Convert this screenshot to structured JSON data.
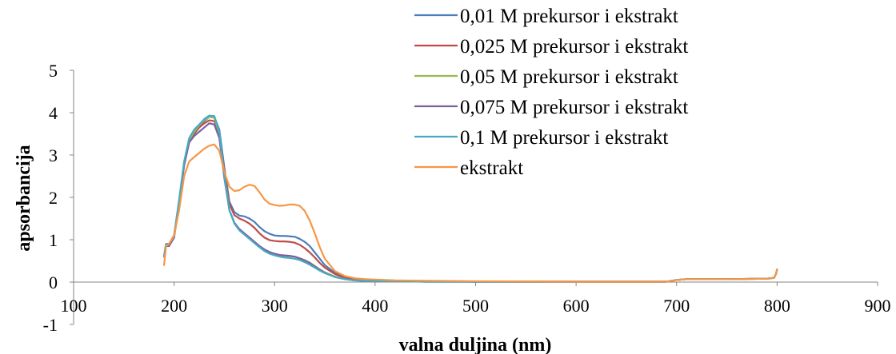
{
  "chart_data": {
    "type": "line",
    "title": "",
    "xlabel": "valna duljina (nm)",
    "ylabel": "apsorbancija",
    "xlim": [
      100,
      900
    ],
    "ylim": [
      -1,
      5
    ],
    "xticks": [
      100,
      200,
      300,
      400,
      500,
      600,
      700,
      800,
      900
    ],
    "yticks": [
      -1,
      0,
      1,
      2,
      3,
      4,
      5
    ],
    "x_tick_labels": [
      "100",
      "200",
      "300",
      "400",
      "500",
      "600",
      "700",
      "800",
      "900"
    ],
    "y_tick_labels": [
      "-1",
      "0",
      "1",
      "2",
      "3",
      "4",
      "5"
    ],
    "grid": false,
    "legend_position": "top-right",
    "series": [
      {
        "name": "0,01 M prekursor i ekstrakt",
        "color": "#4A7EBB",
        "x": [
          190,
          192,
          195,
          200,
          205,
          210,
          215,
          220,
          225,
          230,
          235,
          240,
          245,
          250,
          255,
          260,
          265,
          270,
          275,
          280,
          285,
          290,
          295,
          300,
          305,
          310,
          315,
          320,
          325,
          330,
          335,
          340,
          345,
          350,
          360,
          370,
          380,
          390,
          400,
          420,
          450,
          500,
          600,
          690,
          700,
          710,
          720,
          750,
          790,
          797,
          799,
          800
        ],
        "y": [
          0.6,
          0.9,
          0.9,
          1.1,
          1.9,
          2.8,
          3.3,
          3.6,
          3.7,
          3.8,
          3.9,
          3.9,
          3.6,
          2.7,
          1.9,
          1.65,
          1.57,
          1.55,
          1.5,
          1.42,
          1.3,
          1.2,
          1.14,
          1.1,
          1.09,
          1.09,
          1.08,
          1.07,
          1.02,
          0.95,
          0.85,
          0.7,
          0.55,
          0.4,
          0.22,
          0.12,
          0.07,
          0.05,
          0.04,
          0.03,
          0.02,
          0.01,
          0.01,
          0.01,
          0.05,
          0.07,
          0.07,
          0.07,
          0.08,
          0.1,
          0.2,
          0.3
        ]
      },
      {
        "name": "0,025 M prekursor i ekstrakt",
        "color": "#BE4B48",
        "x": [
          190,
          192,
          195,
          200,
          205,
          210,
          215,
          220,
          225,
          230,
          235,
          240,
          245,
          250,
          255,
          260,
          265,
          270,
          275,
          280,
          285,
          290,
          295,
          300,
          305,
          310,
          315,
          320,
          325,
          330,
          335,
          340,
          345,
          350,
          360,
          370,
          380,
          390,
          400,
          420,
          450,
          500,
          600,
          690,
          700,
          710,
          720,
          750,
          790,
          797,
          799,
          800
        ],
        "y": [
          0.6,
          0.9,
          0.9,
          1.1,
          1.9,
          2.8,
          3.3,
          3.5,
          3.65,
          3.75,
          3.82,
          3.8,
          3.5,
          2.6,
          1.85,
          1.58,
          1.5,
          1.45,
          1.38,
          1.28,
          1.15,
          1.05,
          0.99,
          0.97,
          0.96,
          0.96,
          0.95,
          0.93,
          0.88,
          0.8,
          0.7,
          0.58,
          0.45,
          0.34,
          0.19,
          0.1,
          0.06,
          0.04,
          0.03,
          0.02,
          0.02,
          0.01,
          0.01,
          0.01,
          0.05,
          0.07,
          0.07,
          0.07,
          0.08,
          0.1,
          0.2,
          0.3
        ]
      },
      {
        "name": "0,05 M prekursor i ekstrakt",
        "color": "#98B954",
        "x": [
          190,
          192,
          195,
          200,
          205,
          210,
          215,
          220,
          225,
          230,
          235,
          240,
          245,
          250,
          255,
          260,
          265,
          270,
          275,
          280,
          285,
          290,
          295,
          300,
          305,
          310,
          315,
          320,
          325,
          330,
          335,
          340,
          345,
          350,
          360,
          370,
          380,
          390,
          400,
          420,
          450,
          500,
          600,
          690,
          700,
          710,
          720,
          750,
          790,
          797,
          799,
          800
        ],
        "y": [
          0.6,
          0.9,
          0.9,
          1.1,
          1.9,
          2.8,
          3.35,
          3.55,
          3.7,
          3.82,
          3.9,
          3.88,
          3.5,
          2.5,
          1.7,
          1.4,
          1.25,
          1.15,
          1.05,
          0.95,
          0.85,
          0.76,
          0.7,
          0.66,
          0.63,
          0.62,
          0.61,
          0.6,
          0.56,
          0.52,
          0.46,
          0.38,
          0.3,
          0.23,
          0.13,
          0.07,
          0.04,
          0.03,
          0.02,
          0.02,
          0.01,
          0.01,
          0.01,
          0.01,
          0.05,
          0.07,
          0.07,
          0.07,
          0.08,
          0.1,
          0.2,
          0.3
        ]
      },
      {
        "name": "0,075 M prekursor i ekstrakt",
        "color": "#7D60A0",
        "x": [
          190,
          192,
          195,
          200,
          205,
          210,
          215,
          220,
          225,
          230,
          235,
          240,
          245,
          250,
          255,
          260,
          265,
          270,
          275,
          280,
          285,
          290,
          295,
          300,
          305,
          310,
          315,
          320,
          325,
          330,
          335,
          340,
          345,
          350,
          360,
          370,
          380,
          390,
          400,
          420,
          450,
          500,
          600,
          690,
          700,
          710,
          720,
          750,
          790,
          797,
          799,
          800
        ],
        "y": [
          0.6,
          0.85,
          0.85,
          1.05,
          1.85,
          2.75,
          3.3,
          3.45,
          3.55,
          3.65,
          3.75,
          3.72,
          3.4,
          2.45,
          1.7,
          1.4,
          1.25,
          1.15,
          1.05,
          0.95,
          0.85,
          0.77,
          0.71,
          0.67,
          0.64,
          0.63,
          0.62,
          0.6,
          0.56,
          0.51,
          0.45,
          0.37,
          0.29,
          0.22,
          0.12,
          0.07,
          0.04,
          0.03,
          0.02,
          0.02,
          0.01,
          0.01,
          0.01,
          0.01,
          0.05,
          0.07,
          0.07,
          0.07,
          0.08,
          0.1,
          0.2,
          0.3
        ]
      },
      {
        "name": "0,1 M prekursor i ekstrakt",
        "color": "#46AAC5",
        "x": [
          190,
          192,
          195,
          200,
          205,
          210,
          215,
          220,
          225,
          230,
          235,
          240,
          245,
          250,
          255,
          260,
          265,
          270,
          275,
          280,
          285,
          290,
          295,
          300,
          305,
          310,
          315,
          320,
          325,
          330,
          335,
          340,
          345,
          350,
          360,
          370,
          380,
          390,
          400,
          420,
          450,
          500,
          600,
          690,
          700,
          710,
          720,
          750,
          790,
          797,
          799,
          800
        ],
        "y": [
          0.6,
          0.9,
          0.9,
          1.1,
          1.95,
          2.85,
          3.4,
          3.6,
          3.72,
          3.85,
          3.93,
          3.92,
          3.55,
          2.5,
          1.7,
          1.38,
          1.22,
          1.12,
          1.02,
          0.92,
          0.82,
          0.73,
          0.67,
          0.63,
          0.6,
          0.58,
          0.57,
          0.55,
          0.52,
          0.47,
          0.41,
          0.34,
          0.27,
          0.21,
          0.12,
          0.07,
          0.04,
          0.03,
          0.02,
          0.02,
          0.01,
          0.01,
          0.01,
          0.01,
          0.05,
          0.07,
          0.07,
          0.07,
          0.08,
          0.1,
          0.2,
          0.3
        ]
      },
      {
        "name": "ekstrakt",
        "color": "#F79646",
        "x": [
          190,
          192,
          195,
          200,
          205,
          210,
          215,
          220,
          225,
          230,
          235,
          240,
          245,
          250,
          255,
          260,
          265,
          270,
          275,
          280,
          285,
          290,
          295,
          300,
          305,
          310,
          315,
          320,
          325,
          330,
          335,
          340,
          345,
          350,
          360,
          370,
          380,
          390,
          400,
          420,
          450,
          500,
          600,
          690,
          700,
          710,
          720,
          750,
          790,
          797,
          799,
          800
        ],
        "y": [
          0.4,
          0.85,
          0.9,
          1.1,
          1.7,
          2.5,
          2.85,
          2.95,
          3.05,
          3.15,
          3.22,
          3.25,
          3.1,
          2.6,
          2.25,
          2.15,
          2.17,
          2.25,
          2.3,
          2.27,
          2.12,
          1.95,
          1.85,
          1.82,
          1.8,
          1.81,
          1.83,
          1.83,
          1.8,
          1.68,
          1.45,
          1.15,
          0.82,
          0.55,
          0.26,
          0.14,
          0.09,
          0.07,
          0.06,
          0.04,
          0.03,
          0.02,
          0.01,
          0.01,
          0.05,
          0.07,
          0.07,
          0.07,
          0.08,
          0.1,
          0.2,
          0.3
        ]
      }
    ]
  }
}
